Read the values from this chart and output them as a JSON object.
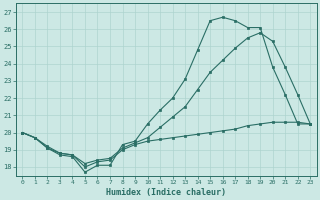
{
  "xlabel": "Humidex (Indice chaleur)",
  "background_color": "#cce8e4",
  "line_color": "#2a6e65",
  "grid_color": "#aed4cf",
  "xlim": [
    -0.5,
    23.5
  ],
  "ylim": [
    17.5,
    27.5
  ],
  "yticks": [
    18,
    19,
    20,
    21,
    22,
    23,
    24,
    25,
    26,
    27
  ],
  "xticks": [
    0,
    1,
    2,
    3,
    4,
    5,
    6,
    7,
    8,
    9,
    10,
    11,
    12,
    13,
    14,
    15,
    16,
    17,
    18,
    19,
    20,
    21,
    22,
    23
  ],
  "line1_x": [
    0,
    1,
    2,
    3,
    4,
    5,
    6,
    7,
    8,
    9,
    10,
    11,
    12,
    13,
    14,
    15,
    16,
    17,
    18,
    19,
    20,
    21,
    22,
    23
  ],
  "line1_y": [
    20.0,
    19.7,
    19.1,
    18.7,
    18.6,
    17.7,
    18.1,
    18.1,
    19.3,
    19.5,
    20.5,
    21.3,
    22.0,
    23.1,
    24.8,
    26.5,
    26.7,
    26.5,
    26.1,
    26.1,
    23.8,
    22.2,
    20.5,
    20.5
  ],
  "line2_x": [
    0,
    1,
    2,
    3,
    4,
    5,
    6,
    7,
    8,
    9,
    10,
    11,
    12,
    13,
    14,
    15,
    16,
    17,
    18,
    19,
    20,
    21,
    22,
    23
  ],
  "line2_y": [
    20.0,
    19.7,
    19.2,
    18.8,
    18.7,
    18.2,
    18.4,
    18.5,
    19.1,
    19.4,
    19.7,
    20.3,
    20.9,
    21.5,
    22.5,
    23.5,
    24.2,
    24.9,
    25.5,
    25.8,
    25.3,
    23.8,
    22.2,
    20.5
  ],
  "line3_x": [
    0,
    1,
    2,
    3,
    4,
    5,
    6,
    7,
    8,
    9,
    10,
    11,
    12,
    13,
    14,
    15,
    16,
    17,
    18,
    19,
    20,
    21,
    22,
    23
  ],
  "line3_y": [
    20.0,
    19.7,
    19.1,
    18.8,
    18.7,
    18.0,
    18.3,
    18.4,
    19.0,
    19.3,
    19.5,
    19.6,
    19.7,
    19.8,
    19.9,
    20.0,
    20.1,
    20.2,
    20.4,
    20.5,
    20.6,
    20.6,
    20.6,
    20.5
  ]
}
